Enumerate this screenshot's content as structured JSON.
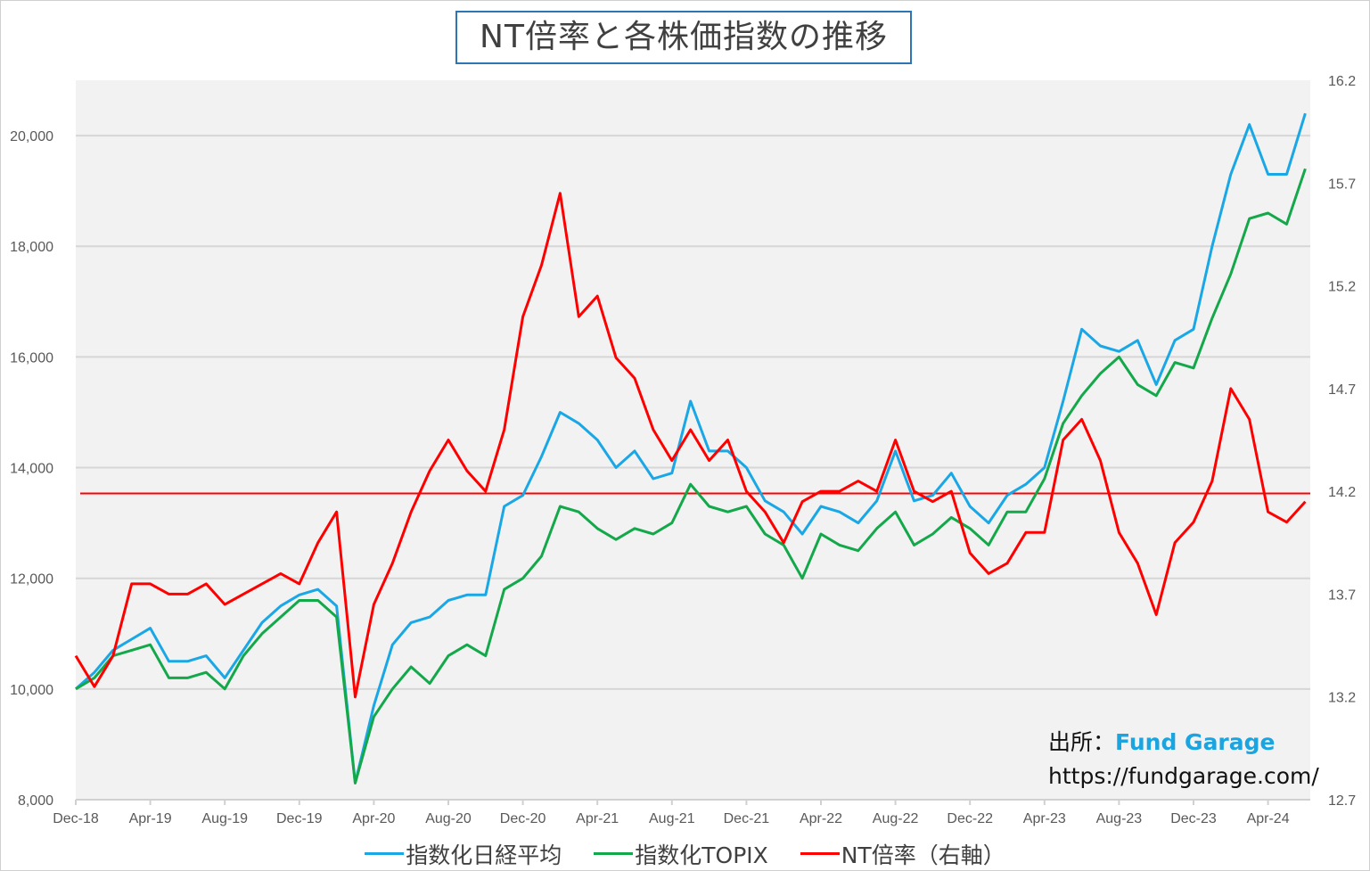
{
  "chart_data": {
    "type": "line",
    "title": "NT倍率と各株価指数の推移",
    "x_ticks": [
      "Dec-18",
      "Apr-19",
      "Aug-19",
      "Dec-19",
      "Apr-20",
      "Aug-20",
      "Dec-20",
      "Apr-21",
      "Aug-21",
      "Dec-21",
      "Apr-22",
      "Aug-22",
      "Dec-22",
      "Apr-23",
      "Aug-23",
      "Dec-23",
      "Apr-24"
    ],
    "y_left": {
      "range": [
        8000,
        21000
      ],
      "ticks": [
        "8,000",
        "10,000",
        "12,000",
        "14,000",
        "16,000",
        "18,000",
        "20,000"
      ],
      "tick_values": [
        8000,
        10000,
        12000,
        14000,
        16000,
        18000,
        20000
      ]
    },
    "y_right": {
      "range": [
        12.7,
        16.2
      ],
      "ticks": [
        "12.7",
        "13.2",
        "13.7",
        "14.2",
        "14.7",
        "15.2",
        "15.7",
        "16.2"
      ],
      "tick_values": [
        12.7,
        13.2,
        13.7,
        14.2,
        14.7,
        15.2,
        15.7,
        16.2
      ]
    },
    "grid": "horizontal",
    "legend_position": "bottom",
    "x": [
      "2018-12",
      "2019-01",
      "2019-02",
      "2019-03",
      "2019-04",
      "2019-05",
      "2019-06",
      "2019-07",
      "2019-08",
      "2019-09",
      "2019-10",
      "2019-11",
      "2019-12",
      "2020-01",
      "2020-02",
      "2020-03",
      "2020-04",
      "2020-05",
      "2020-06",
      "2020-07",
      "2020-08",
      "2020-09",
      "2020-10",
      "2020-11",
      "2020-12",
      "2021-01",
      "2021-02",
      "2021-03",
      "2021-04",
      "2021-05",
      "2021-06",
      "2021-07",
      "2021-08",
      "2021-09",
      "2021-10",
      "2021-11",
      "2021-12",
      "2022-01",
      "2022-02",
      "2022-03",
      "2022-04",
      "2022-05",
      "2022-06",
      "2022-07",
      "2022-08",
      "2022-09",
      "2022-10",
      "2022-11",
      "2022-12",
      "2023-01",
      "2023-02",
      "2023-03",
      "2023-04",
      "2023-05",
      "2023-06",
      "2023-07",
      "2023-08",
      "2023-09",
      "2023-10",
      "2023-11",
      "2023-12",
      "2024-01",
      "2024-02",
      "2024-03",
      "2024-04",
      "2024-05",
      "2024-06"
    ],
    "series": [
      {
        "name": "指数化日経平均",
        "axis": "left",
        "color": "#1aa7e6",
        "values": [
          10000,
          10300,
          10700,
          10900,
          11100,
          10500,
          10500,
          10600,
          10200,
          10700,
          11200,
          11500,
          11700,
          11800,
          11500,
          8300,
          9700,
          10800,
          11200,
          11300,
          11600,
          11700,
          11700,
          13300,
          13500,
          14200,
          15000,
          14800,
          14500,
          14000,
          14300,
          13800,
          13900,
          15200,
          14300,
          14300,
          14000,
          13400,
          13200,
          12800,
          13300,
          13200,
          13000,
          13400,
          14300,
          13400,
          13500,
          13900,
          13300,
          13000,
          13500,
          13700,
          14000,
          15200,
          16500,
          16200,
          16100,
          16300,
          15500,
          16300,
          16500,
          18000,
          19300,
          20200,
          19300,
          19300,
          20400
        ]
      },
      {
        "name": "指数化TOPIX",
        "axis": "left",
        "color": "#13a84a",
        "values": [
          10000,
          10200,
          10600,
          10700,
          10800,
          10200,
          10200,
          10300,
          10000,
          10600,
          11000,
          11300,
          11600,
          11600,
          11300,
          8300,
          9500,
          10000,
          10400,
          10100,
          10600,
          10800,
          10600,
          11800,
          12000,
          12400,
          13300,
          13200,
          12900,
          12700,
          12900,
          12800,
          13000,
          13700,
          13300,
          13200,
          13300,
          12800,
          12600,
          12000,
          12800,
          12600,
          12500,
          12900,
          13200,
          12600,
          12800,
          13100,
          12900,
          12600,
          13200,
          13200,
          13800,
          14800,
          15300,
          15700,
          16000,
          15500,
          15300,
          15900,
          15800,
          16700,
          17500,
          18500,
          18600,
          18400,
          19400
        ]
      },
      {
        "name": "NT倍率（右軸）",
        "axis": "right",
        "color": "#ff0000",
        "values": [
          13.4,
          13.25,
          13.4,
          13.75,
          13.75,
          13.7,
          13.7,
          13.75,
          13.65,
          13.7,
          13.75,
          13.8,
          13.75,
          13.95,
          14.1,
          13.2,
          13.65,
          13.85,
          14.1,
          14.3,
          14.45,
          14.3,
          14.2,
          14.5,
          15.05,
          15.3,
          15.65,
          15.05,
          15.15,
          14.85,
          14.75,
          14.5,
          14.35,
          14.5,
          14.35,
          14.45,
          14.2,
          14.1,
          13.95,
          14.15,
          14.2,
          14.2,
          14.25,
          14.2,
          14.45,
          14.2,
          14.15,
          14.2,
          13.9,
          13.8,
          13.85,
          14.0,
          14.0,
          14.45,
          14.55,
          14.35,
          14.0,
          13.85,
          13.6,
          13.95,
          14.05,
          14.25,
          14.7,
          14.55,
          14.1,
          14.05,
          14.15
        ]
      }
    ],
    "reference_line": {
      "axis": "right",
      "value": 14.19,
      "color": "#ff0000"
    }
  },
  "source": {
    "label": "出所：",
    "brand": "Fund Garage",
    "url": "https://fundgarage.com/"
  }
}
